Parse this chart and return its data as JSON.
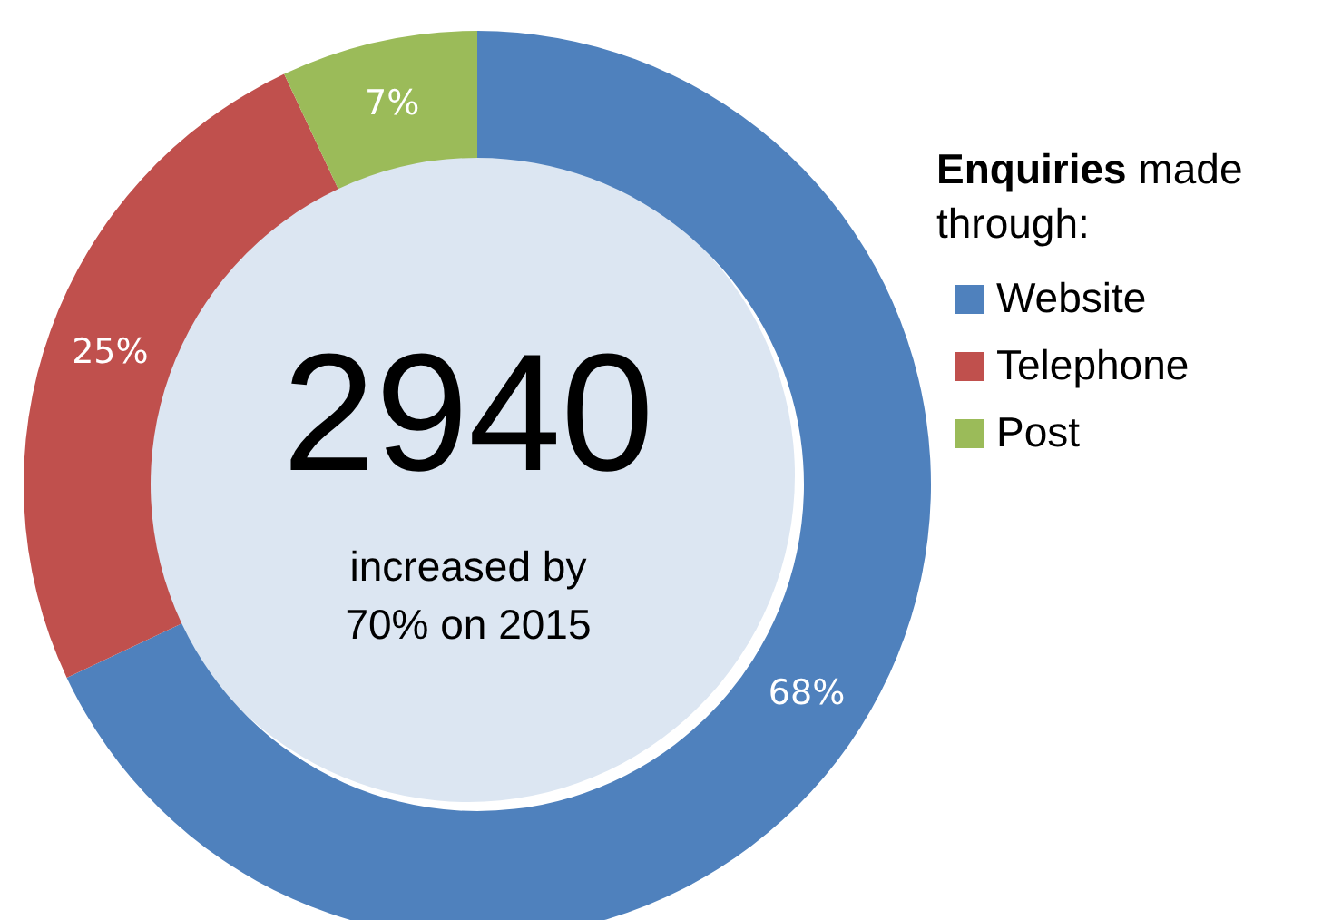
{
  "chart_data": {
    "type": "donut",
    "legend_title": "Enquiries made through:",
    "categories": [
      "Website",
      "Telephone",
      "Post"
    ],
    "values": [
      68,
      25,
      7
    ],
    "colors": [
      "#4f81bd",
      "#c0504d",
      "#9bbb59"
    ],
    "value_labels": [
      "68%",
      "25%",
      "7%"
    ],
    "annotations": [
      "2940",
      "increased by 70% on 2015"
    ],
    "legend": "right"
  }
}
